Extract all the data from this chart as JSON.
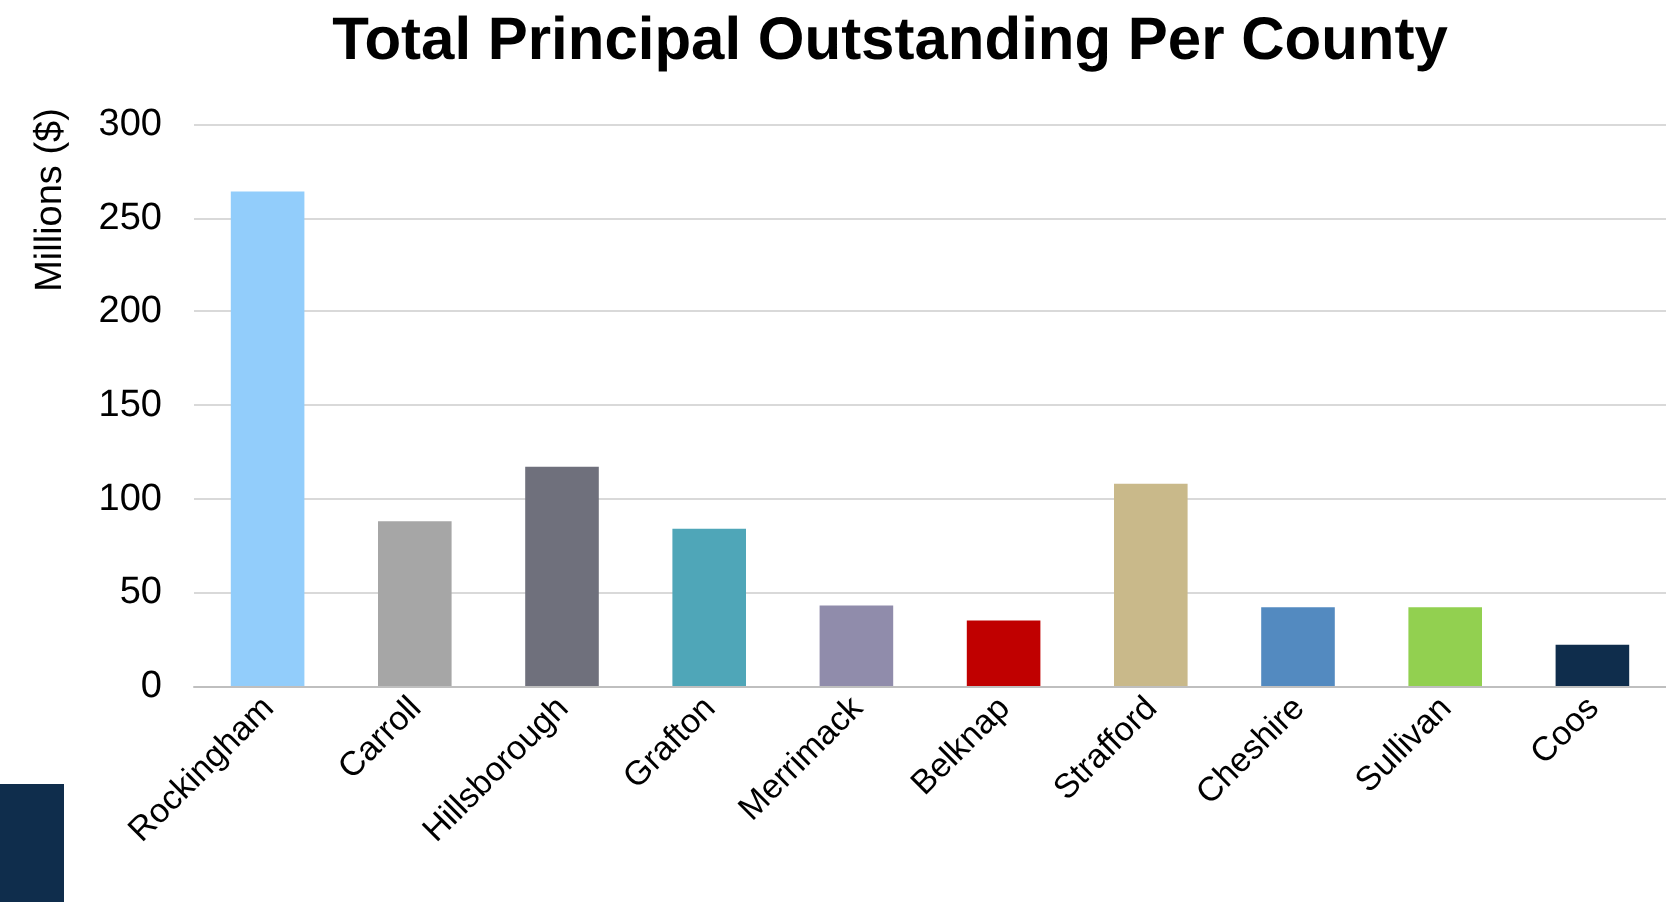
{
  "chart_data": {
    "type": "bar",
    "title": "Total Principal Outstanding Per County",
    "ylabel": "Millions ($)",
    "categories": [
      "Rockingham",
      "Carroll",
      "Hillsborough",
      "Grafton",
      "Merrimack",
      "Belknap",
      "Strafford",
      "Cheshire",
      "Sullivan",
      "Coos"
    ],
    "values": [
      264,
      88,
      117,
      84,
      43,
      35,
      108,
      42,
      42,
      22
    ],
    "colors": [
      "#92cdfb",
      "#a6a6a6",
      "#6f707c",
      "#4fa6b8",
      "#908cab",
      "#c00000",
      "#c9b98a",
      "#538ac0",
      "#92d050",
      "#0f2d4c"
    ],
    "ylim": [
      0,
      300
    ],
    "yticks": [
      0,
      50,
      100,
      150,
      200,
      250,
      300
    ],
    "grid": "y"
  }
}
